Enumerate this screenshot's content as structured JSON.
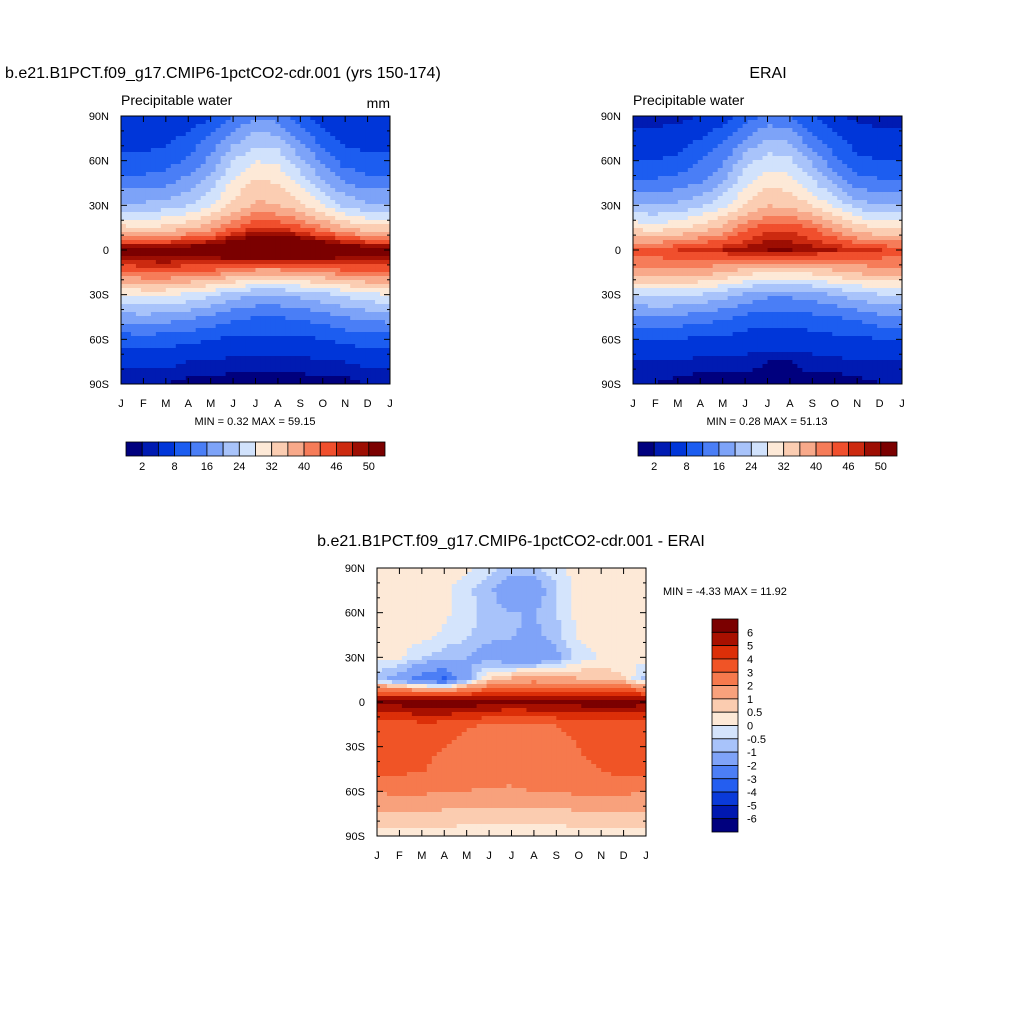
{
  "charts": [
    {
      "id": "model",
      "title": "b.e21.B1PCT.f09_g17.CMIP6-1pctCO2-cdr.001 (yrs 150-174)",
      "subtitle_left": "Precipitable water",
      "subtitle_right": "mm",
      "stats": "MIN =   0.32 MAX =  59.15",
      "min": 0.32,
      "max": 59.15
    },
    {
      "id": "obs",
      "title": "ERAI",
      "subtitle_left": "Precipitable water",
      "subtitle_right": "",
      "stats": "MIN =   0.28 MAX =  51.13",
      "min": 0.28,
      "max": 51.13
    },
    {
      "id": "diff",
      "title": "b.e21.B1PCT.f09_g17.CMIP6-1pctCO2-cdr.001 - ERAI",
      "subtitle_left": "",
      "subtitle_right": "",
      "stats": "MIN =  -4.33 MAX =  11.92",
      "min": -4.33,
      "max": 11.92
    }
  ],
  "axes": {
    "x_tick_labels": [
      "J",
      "F",
      "M",
      "A",
      "M",
      "J",
      "J",
      "A",
      "S",
      "O",
      "N",
      "D",
      "J"
    ],
    "y_tick_labels": [
      "90N",
      "60N",
      "30N",
      "0",
      "30S",
      "60S",
      "90S"
    ],
    "y_values": [
      90,
      60,
      30,
      0,
      -30,
      -60,
      -90
    ]
  },
  "colorbar_abs": {
    "colors": [
      "#00007e",
      "#001bb2",
      "#0036d9",
      "#1c5df0",
      "#4a7ef6",
      "#7da3f8",
      "#a8c3fa",
      "#d1e2fc",
      "#fde9d7",
      "#fbcdb2",
      "#f8a98a",
      "#f67c59",
      "#f04f2d",
      "#cc2a10",
      "#9d0e03",
      "#7b0000"
    ],
    "labels": [
      "2",
      "8",
      "16",
      "24",
      "32",
      "40",
      "46",
      "50"
    ]
  },
  "colorbar_diff": {
    "colors": [
      "#7b0000",
      "#a81000",
      "#dc2f08",
      "#f05426",
      "#f6794d",
      "#f8a17c",
      "#fbccb0",
      "#fde9d7",
      "#d4e4fc",
      "#a8c3fa",
      "#7fa3f8",
      "#4c7ef5",
      "#245ef0",
      "#0a3ad9",
      "#0018b0",
      "#00007e"
    ],
    "labels": [
      "6",
      "5",
      "4",
      "3",
      "2",
      "1",
      "0.5",
      "0",
      "-0.5",
      "-1",
      "-2",
      "-3",
      "-4",
      "-5",
      "-6"
    ]
  },
  "chart_data": [
    {
      "type": "heatmap",
      "title": "b.e21.B1PCT.f09_g17.CMIP6-1pctCO2-cdr.001 (yrs 150-174)",
      "variable": "Precipitable water",
      "units": "mm",
      "x": [
        "J",
        "F",
        "M",
        "A",
        "M",
        "J",
        "J",
        "A",
        "S",
        "O",
        "N",
        "D",
        "J"
      ],
      "y": [
        90,
        75,
        60,
        45,
        30,
        15,
        0,
        -15,
        -30,
        -45,
        -60,
        -75,
        -90
      ],
      "values": [
        [
          4,
          4,
          4,
          5,
          7,
          12,
          15,
          14,
          9,
          6,
          4,
          4,
          4
        ],
        [
          6,
          6,
          7,
          9,
          13,
          18,
          22,
          21,
          15,
          10,
          7,
          6,
          6
        ],
        [
          9,
          9,
          10,
          13,
          17,
          24,
          28,
          27,
          21,
          15,
          10,
          9,
          9
        ],
        [
          14,
          14,
          15,
          18,
          22,
          29,
          33,
          32,
          27,
          21,
          16,
          14,
          14
        ],
        [
          21,
          21,
          22,
          24,
          28,
          33,
          37,
          36,
          33,
          28,
          23,
          21,
          21
        ],
        [
          33,
          32,
          33,
          35,
          38,
          43,
          46,
          46,
          44,
          40,
          36,
          33,
          33
        ],
        [
          52,
          52,
          53,
          53,
          54,
          56,
          57,
          57,
          57,
          56,
          54,
          53,
          52
        ],
        [
          43,
          44,
          44,
          43,
          42,
          40,
          38,
          38,
          39,
          40,
          42,
          43,
          43
        ],
        [
          28,
          29,
          29,
          27,
          25,
          22,
          20,
          20,
          21,
          23,
          25,
          27,
          28
        ],
        [
          18,
          19,
          18,
          17,
          15,
          13,
          12,
          12,
          13,
          14,
          16,
          17,
          18
        ],
        [
          10,
          10,
          10,
          9,
          8,
          7,
          7,
          7,
          7,
          8,
          9,
          10,
          10
        ],
        [
          5,
          5,
          5,
          4,
          4,
          3,
          3,
          3,
          3,
          4,
          4,
          5,
          5
        ],
        [
          2,
          2,
          2,
          1,
          1,
          1,
          1,
          1,
          1,
          1,
          1,
          2,
          2
        ]
      ],
      "xlabel": "",
      "ylabel": "",
      "stats": {
        "min": 0.32,
        "max": 59.15
      }
    },
    {
      "type": "heatmap",
      "title": "ERAI",
      "variable": "Precipitable water",
      "x": [
        "J",
        "F",
        "M",
        "A",
        "M",
        "J",
        "J",
        "A",
        "S",
        "O",
        "N",
        "D",
        "J"
      ],
      "y": [
        90,
        75,
        60,
        45,
        30,
        15,
        0,
        -15,
        -30,
        -45,
        -60,
        -75,
        -90
      ],
      "values": [
        [
          3,
          3,
          3,
          4,
          6,
          10,
          13,
          12,
          8,
          5,
          3,
          3,
          3
        ],
        [
          5,
          5,
          6,
          8,
          11,
          16,
          20,
          19,
          13,
          9,
          6,
          5,
          5
        ],
        [
          8,
          8,
          9,
          12,
          15,
          22,
          26,
          25,
          19,
          13,
          9,
          8,
          8
        ],
        [
          13,
          13,
          14,
          16,
          20,
          27,
          31,
          30,
          25,
          19,
          14,
          13,
          13
        ],
        [
          20,
          20,
          21,
          23,
          27,
          32,
          36,
          35,
          32,
          27,
          22,
          20,
          20
        ],
        [
          31,
          30,
          31,
          34,
          37,
          42,
          45,
          45,
          43,
          39,
          34,
          31,
          31
        ],
        [
          45,
          45,
          46,
          47,
          48,
          49,
          50,
          50,
          49,
          48,
          47,
          46,
          45
        ],
        [
          38,
          39,
          39,
          38,
          36,
          34,
          32,
          32,
          33,
          35,
          37,
          38,
          38
        ],
        [
          24,
          25,
          25,
          24,
          22,
          19,
          17,
          17,
          18,
          20,
          22,
          24,
          24
        ],
        [
          15,
          16,
          15,
          14,
          13,
          11,
          10,
          10,
          11,
          12,
          13,
          15,
          15
        ],
        [
          8,
          8,
          8,
          7,
          7,
          6,
          6,
          6,
          6,
          7,
          7,
          8,
          8
        ],
        [
          4,
          4,
          4,
          3,
          3,
          3,
          2,
          2,
          3,
          3,
          4,
          4,
          4
        ],
        [
          2,
          2,
          1,
          1,
          1,
          1,
          1,
          1,
          1,
          1,
          1,
          2,
          2
        ]
      ],
      "stats": {
        "min": 0.28,
        "max": 51.13
      }
    },
    {
      "type": "heatmap",
      "title": "b.e21.B1PCT.f09_g17.CMIP6-1pctCO2-cdr.001 - ERAI",
      "x": [
        "J",
        "F",
        "M",
        "A",
        "M",
        "J",
        "J",
        "A",
        "S",
        "O",
        "N",
        "D",
        "J"
      ],
      "y": [
        90,
        75,
        60,
        45,
        30,
        15,
        0,
        -15,
        -30,
        -45,
        -60,
        -75,
        -90
      ],
      "values": [
        [
          0.2,
          0.3,
          0.3,
          0.2,
          0.2,
          -0.3,
          -0.7,
          -0.6,
          -0.2,
          0.3,
          0.3,
          0.3,
          0.2
        ],
        [
          0.3,
          0.4,
          0.3,
          0.2,
          -0.4,
          -0.8,
          -1.8,
          -1.5,
          -0.6,
          0.3,
          0.4,
          0.3,
          0.3
        ],
        [
          0.3,
          0.3,
          0.3,
          0.1,
          -0.3,
          -0.7,
          -1.0,
          -1.0,
          -0.5,
          0.2,
          0.3,
          0.3,
          0.3
        ],
        [
          0.3,
          0.2,
          0.2,
          -0.1,
          -0.4,
          -0.8,
          -0.9,
          -1.2,
          -0.7,
          0.1,
          0.2,
          0.3,
          0.3
        ],
        [
          0.2,
          0.1,
          -0.4,
          -0.8,
          -1.0,
          -1.4,
          -1.6,
          -1.8,
          -1.2,
          -0.3,
          0.1,
          0.2,
          0.2
        ],
        [
          -0.8,
          -1.5,
          -2.6,
          -3.3,
          -1.2,
          0.6,
          1.2,
          1.5,
          1.3,
          1.1,
          0.9,
          0.6,
          -0.8
        ],
        [
          6.4,
          6.6,
          6.8,
          6.9,
          6.8,
          6.4,
          6.0,
          6.3,
          6.5,
          6.6,
          6.8,
          6.9,
          6.4
        ],
        [
          3.3,
          3.0,
          3.8,
          3.6,
          3.1,
          2.9,
          2.8,
          2.9,
          3.0,
          3.2,
          3.3,
          3.2,
          3.3
        ],
        [
          3.2,
          3.4,
          3.4,
          3.0,
          2.7,
          2.5,
          2.6,
          2.6,
          2.8,
          3.0,
          3.2,
          3.3,
          3.2
        ],
        [
          3.6,
          3.3,
          3.1,
          2.6,
          2.4,
          2.4,
          2.3,
          2.5,
          2.7,
          2.9,
          3.0,
          3.5,
          3.6
        ],
        [
          2.1,
          2.2,
          2.2,
          2.0,
          2.0,
          1.9,
          1.9,
          2.0,
          2.1,
          2.2,
          2.2,
          2.2,
          2.1
        ],
        [
          0.8,
          0.9,
          0.9,
          0.8,
          0.7,
          0.7,
          0.7,
          0.7,
          0.7,
          0.8,
          0.8,
          0.8,
          0.8
        ],
        [
          0.3,
          0.3,
          0.3,
          0.3,
          0.3,
          0.3,
          0.3,
          0.3,
          0.3,
          0.3,
          0.3,
          0.3,
          0.3
        ]
      ],
      "stats": {
        "min": -4.33,
        "max": 11.92
      }
    }
  ]
}
